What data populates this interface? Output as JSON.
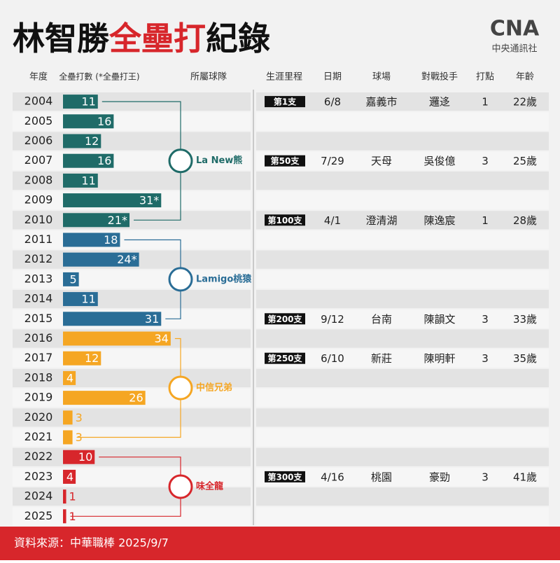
{
  "title_parts": [
    "林智勝",
    "全壘打",
    "紀錄"
  ],
  "logo": {
    "mark": "CNA",
    "name": "中央通訊社"
  },
  "headers": [
    "年度",
    "全壘打數 (*全壘打王)",
    "所屬球隊",
    "生涯里程",
    "日期",
    "球場",
    "對戰投手",
    "打點",
    "年齡"
  ],
  "chart_data": {
    "type": "bar",
    "orientation": "horizontal",
    "categories": [
      "2004",
      "2005",
      "2006",
      "2007",
      "2008",
      "2009",
      "2010",
      "2011",
      "2012",
      "2013",
      "2014",
      "2015",
      "2016",
      "2017",
      "2018",
      "2019",
      "2020",
      "2021",
      "2022",
      "2023",
      "2024",
      "2025"
    ],
    "values": [
      11,
      16,
      12,
      16,
      11,
      31,
      21,
      18,
      24,
      5,
      11,
      31,
      34,
      12,
      4,
      26,
      3,
      3,
      10,
      4,
      1,
      1
    ],
    "value_labels": [
      "11",
      "16",
      "12",
      "16",
      "11",
      "31*",
      "21*",
      "18",
      "24*",
      "5",
      "11",
      "31",
      "34",
      "12",
      "4",
      "26",
      "3",
      "3",
      "10",
      "4",
      "1",
      "1"
    ],
    "colors": [
      "#1f6b68",
      "#1f6b68",
      "#1f6b68",
      "#1f6b68",
      "#1f6b68",
      "#1f6b68",
      "#1f6b68",
      "#2a6d96",
      "#2a6d96",
      "#2a6d96",
      "#2a6d96",
      "#2a6d96",
      "#f5a623",
      "#f5a623",
      "#f5a623",
      "#f5a623",
      "#f5a623",
      "#f5a623",
      "#d7262b",
      "#d7262b",
      "#d7262b",
      "#d7262b"
    ],
    "xlim": [
      0,
      40
    ],
    "teams": [
      {
        "name": "La New熊",
        "color": "#1f6b68"
      },
      {
        "name": "Lamigo桃猿",
        "color": "#2a6d96"
      },
      {
        "name": "中信兄弟",
        "color": "#f5a623"
      },
      {
        "name": "味全龍",
        "color": "#d7262b"
      }
    ]
  },
  "milestones": [
    [
      "第1支",
      "6/8",
      "嘉義市",
      "邏迻",
      1,
      "22歲"
    ],
    null,
    null,
    [
      "第50支",
      "7/29",
      "天母",
      "吳俊億",
      3,
      "25歲"
    ],
    null,
    null,
    [
      "第100支",
      "4/1",
      "澄清湖",
      "陳逸宸",
      1,
      "28歲"
    ],
    null,
    null,
    null,
    null,
    [
      "第200支",
      "9/12",
      "台南",
      "陳韻文",
      3,
      "33歲"
    ],
    null,
    [
      "第250支",
      "6/10",
      "新莊",
      "陳明軒",
      3,
      "35歲"
    ],
    null,
    null,
    null,
    null,
    null,
    [
      "第300支",
      "4/16",
      "桃園",
      "豪勁",
      3,
      "41歲"
    ],
    null,
    null
  ],
  "source": "資料來源：中華職棒 2025/9/7"
}
